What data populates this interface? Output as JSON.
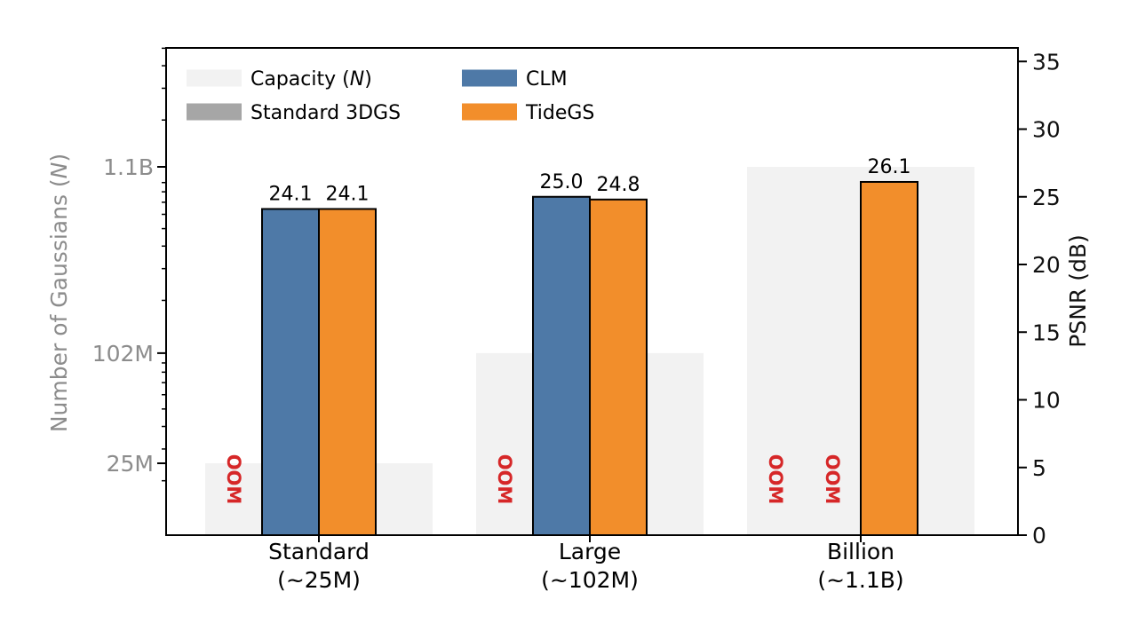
{
  "chart_data": {
    "type": "bar",
    "categories": [
      {
        "line1": "Standard",
        "line2": "(~25M)"
      },
      {
        "line1": "Large",
        "line2": "(~102M)"
      },
      {
        "line1": "Billion",
        "line2": "(~1.1B)"
      }
    ],
    "left_axis": {
      "label": "Number of Gaussians (",
      "label_var": "N",
      "label_close": ")",
      "scale": "log",
      "ticks": [
        {
          "value": 25000000,
          "label": "25M"
        },
        {
          "value": 102000000,
          "label": "102M"
        },
        {
          "value": 1100000000,
          "label": "1.1B"
        }
      ]
    },
    "right_axis": {
      "label": "PSNR (dB)",
      "ylim": [
        0,
        36
      ],
      "ticks": [
        0,
        5,
        10,
        15,
        20,
        25,
        30,
        35
      ]
    },
    "capacity": {
      "name": "Capacity (",
      "name_var": "N",
      "name_close": ")",
      "color": "#f2f2f2",
      "values": [
        25000000,
        102000000,
        1100000000
      ]
    },
    "series": [
      {
        "name": "Standard 3DGS",
        "color": "#a6a6a6",
        "values": [
          null,
          null,
          null
        ],
        "labels": [
          "OOM",
          "OOM",
          "OOM"
        ]
      },
      {
        "name": "CLM",
        "color": "#4e79a7",
        "values": [
          24.1,
          25.0,
          null
        ],
        "labels": [
          "24.1",
          "25.0",
          "OOM"
        ]
      },
      {
        "name": "TideGS",
        "color": "#f28e2b",
        "values": [
          24.1,
          24.8,
          26.1
        ],
        "labels": [
          "24.1",
          "24.8",
          "26.1"
        ]
      }
    ],
    "oom_label": "OOM",
    "oom_color": "#d62728",
    "legend_placement": "top-left",
    "grid": false
  }
}
